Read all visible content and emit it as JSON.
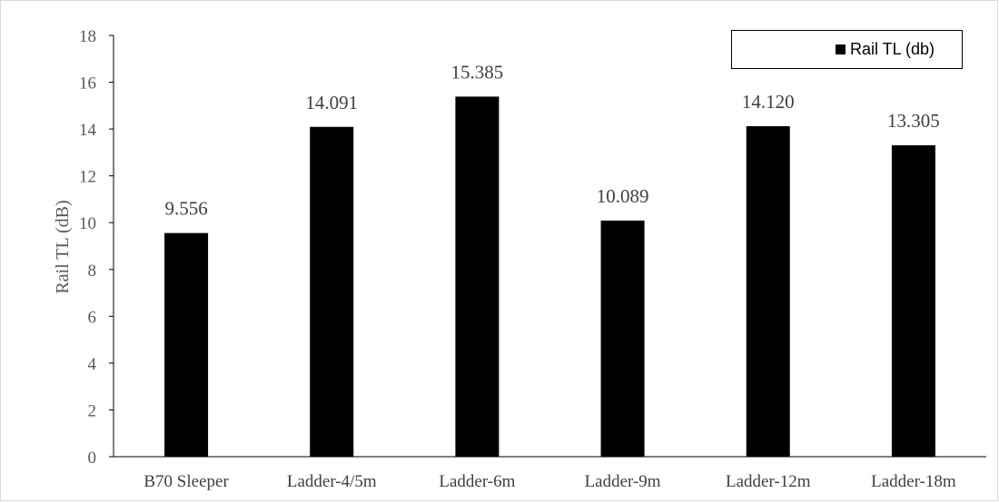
{
  "chart_data": {
    "type": "bar",
    "categories": [
      "B70 Sleeper",
      "Ladder-4/5m",
      "Ladder-6m",
      "Ladder-9m",
      "Ladder-12m",
      "Ladder-18m"
    ],
    "series": [
      {
        "name": "Rail TL (db)",
        "values": [
          9.556,
          14.091,
          15.385,
          10.089,
          14.12,
          13.305
        ],
        "labels": [
          "9.556",
          "14.091",
          "15.385",
          "10.089",
          "14.120",
          "13.305"
        ],
        "color": "#000000"
      }
    ],
    "title": "",
    "xlabel": "",
    "ylabel": "Rail TL (dB)",
    "ylim": [
      0,
      18
    ],
    "yticks": [
      "0",
      "2",
      "4",
      "6",
      "8",
      "10",
      "12",
      "14",
      "16",
      "18"
    ],
    "grid": false,
    "legend_position": "top-right"
  }
}
